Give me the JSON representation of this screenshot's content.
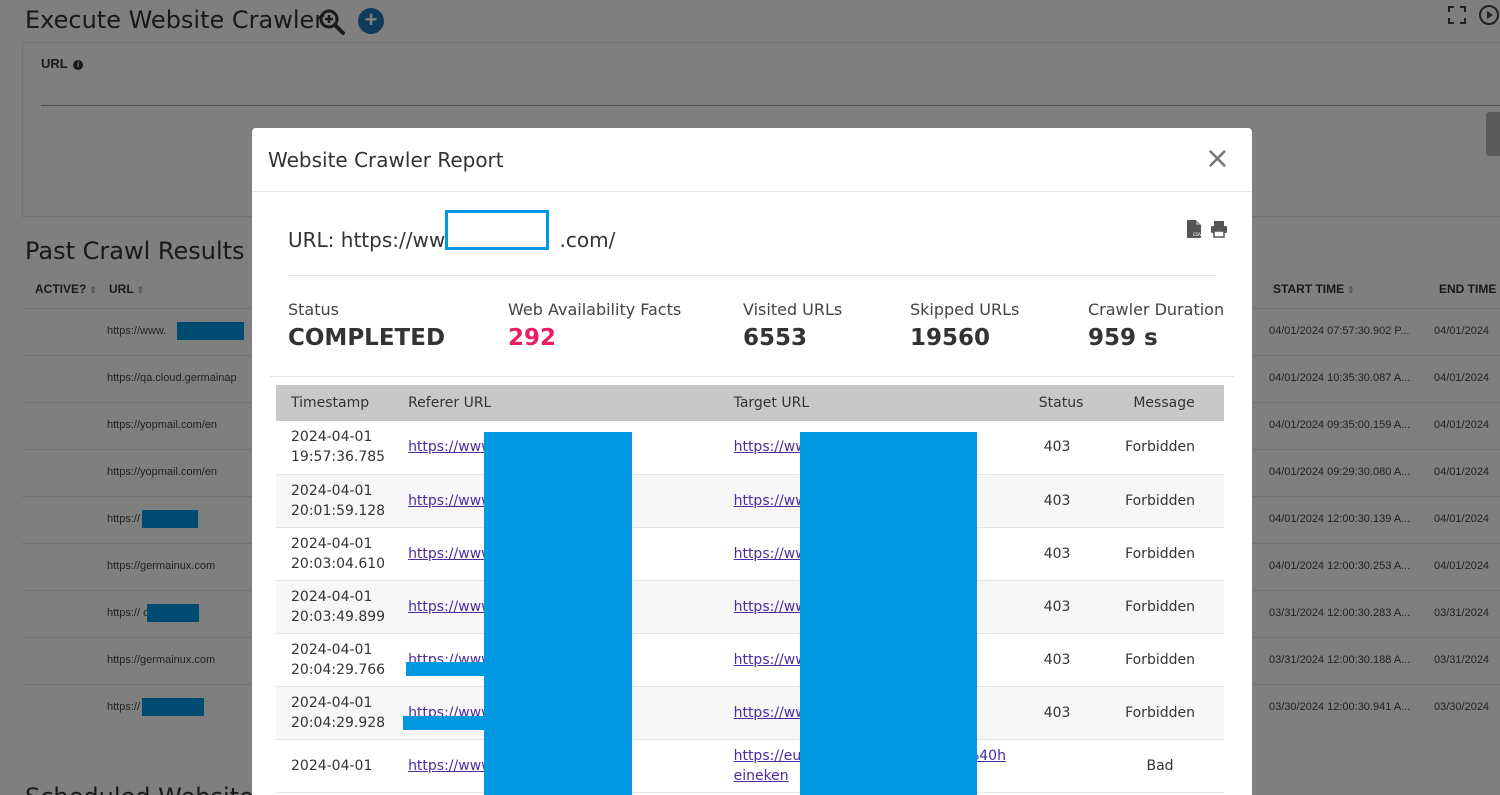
{
  "page": {
    "title": "Execute Website Crawler",
    "url_label": "URL",
    "past_title": "Past Crawl Results",
    "scheduled_title": "Scheduled Website C",
    "past_columns": {
      "active": "ACTIVE?",
      "url": "URL",
      "start": "START TIME",
      "end": "END TIME"
    },
    "past_rows": [
      {
        "url": "https://www.",
        "start": "04/01/2024 07:57:30.902 P...",
        "end": "04/01/2024"
      },
      {
        "url": "https://qa.cloud.germainap",
        "start": "04/01/2024 10:35:30.087 A...",
        "end": "04/01/2024"
      },
      {
        "url": "https://yopmail.com/en",
        "start": "04/01/2024 09:35:00.159 A...",
        "end": "04/01/2024"
      },
      {
        "url": "https://yopmail.com/en",
        "start": "04/01/2024 09:29:30.080 A...",
        "end": "04/01/2024"
      },
      {
        "url": "https://            o.kr",
        "start": "04/01/2024 12:00:30.139 A...",
        "end": "04/01/2024"
      },
      {
        "url": "https://germainux.com",
        "start": "04/01/2024 12:00:30.253 A...",
        "end": "04/01/2024"
      },
      {
        "url": "https://           o.kr",
        "start": "03/31/2024 12:00:30.283 A...",
        "end": "03/31/2024"
      },
      {
        "url": "https://germainux.com",
        "start": "03/31/2024 12:00:30.188 A...",
        "end": "03/31/2024"
      },
      {
        "url": "https://           o.kr",
        "start": "03/30/2024 12:00:30.941 A...",
        "end": "03/30/2024"
      }
    ]
  },
  "modal": {
    "title": "Website Crawler Report",
    "close": "×",
    "url_prefix": "URL: https://www",
    "url_suffix": ".com/",
    "stats": [
      {
        "label": "Status",
        "value": "COMPLETED"
      },
      {
        "label": "Web Availability Facts",
        "value": "292"
      },
      {
        "label": "Visited URLs",
        "value": "6553"
      },
      {
        "label": "Skipped URLs",
        "value": "19560"
      },
      {
        "label": "Crawler Duration",
        "value": "959 s"
      }
    ],
    "table": {
      "headers": [
        "Timestamp",
        "Referer URL",
        "Target URL",
        "Status",
        "Message"
      ],
      "rows": [
        {
          "ts": "2024-04-01 19:57:36.785",
          "ref": "https://www                            /en/home",
          "tgt": "https://ww                          m/",
          "status": "403",
          "msg": "Forbidden"
        },
        {
          "ts": "2024-04-01 20:01:59.128",
          "ref": "https://www                          campaigns",
          "tgt": "https://ww                          m/our-response-c",
          "status": "403",
          "msg": "Forbidden"
        },
        {
          "ts": "2024-04-01 20:03:04.610",
          "ref": "https://www                             home",
          "tgt": "https://ww                         ct-us",
          "status": "403",
          "msg": "Forbidden"
        },
        {
          "ts": "2024-04-01 20:03:49.899",
          "ref": "https://www                          /en/privacy-policy",
          "tgt": "https://ww                          m/data-privacy-re",
          "status": "403",
          "msg": "Forbidden"
        },
        {
          "ts": "2024-04-01 20:04:29.766",
          "ref": "https://www                         our-beers/",
          "tgt": "https://ww                         y-policy/",
          "status": "403",
          "msg": "Forbidden"
        },
        {
          "ts": "2024-04-01 20:04:29.928",
          "ref": "https://www                         our-beers/",
          "tgt": "https://ww                          -use",
          "status": "403",
          "msg": "Forbidden"
        },
        {
          "ts": "2024-04-01",
          "ref": "https://www                          cookie-pol",
          "tgt": "https://eur                        look.com/?data=0                        em%40heineken",
          "status": "",
          "msg": "Bad"
        }
      ]
    }
  },
  "colors": {
    "accent_blue": "#1f78b4",
    "redaction": "#0098e0",
    "pink": "#e91e63",
    "link": "#4b2c9e"
  }
}
